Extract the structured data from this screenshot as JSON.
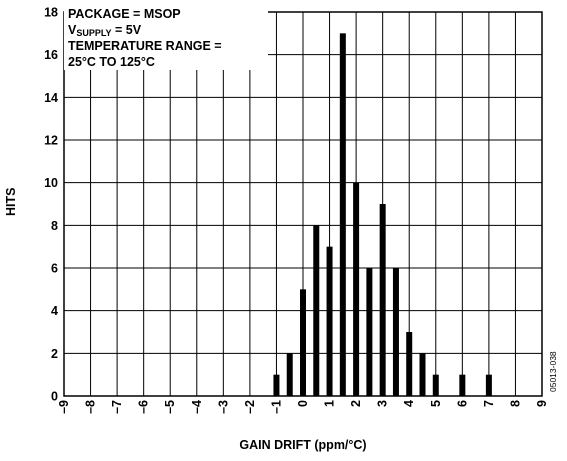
{
  "chart_data": {
    "type": "bar",
    "title": "",
    "xlabel": "GAIN DRIFT (ppm/°C)",
    "ylabel": "HITS",
    "xlim": [
      -9,
      9
    ],
    "ylim": [
      0,
      18
    ],
    "x_ticks": [
      -9,
      -8,
      -7,
      -6,
      -5,
      -4,
      -3,
      -2,
      -1,
      0,
      1,
      2,
      3,
      4,
      5,
      6,
      7,
      8,
      9
    ],
    "y_ticks": [
      0,
      2,
      4,
      6,
      8,
      10,
      12,
      14,
      16,
      18
    ],
    "grid": true,
    "bins": [
      -1.0,
      -0.5,
      0.0,
      0.5,
      1.0,
      1.5,
      2.0,
      2.5,
      3.0,
      3.5,
      4.0,
      4.5,
      5.0,
      6.0,
      7.0
    ],
    "values": [
      1,
      2,
      5,
      8,
      7,
      17,
      10,
      6,
      9,
      6,
      3,
      2,
      1,
      1,
      1
    ],
    "annotation": {
      "line1": "PACKAGE = MSOP",
      "line2_main": "V",
      "line2_sub": "SUPPLY",
      "line2_rest": " = 5V",
      "line3": "TEMPERATURE RANGE =",
      "line4": "25°C TO 125°C"
    },
    "figure_id": "05013-038"
  }
}
